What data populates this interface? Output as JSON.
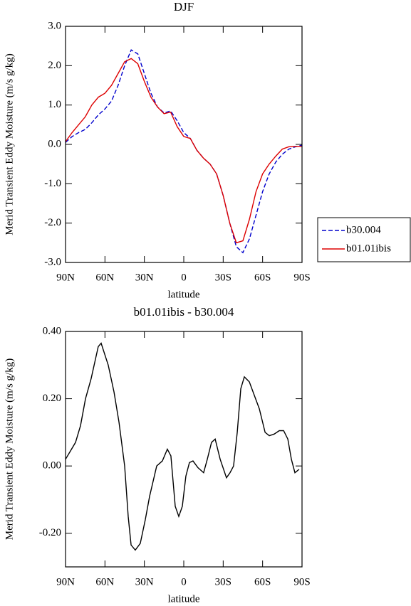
{
  "chart_data": [
    {
      "type": "line",
      "title": "DJF",
      "y_label": "Merid Transient Eddy Moisture (m/s g/kg)",
      "x_label": "latitude",
      "x": [
        90,
        85,
        80,
        75,
        70,
        65,
        60,
        55,
        50,
        45,
        40,
        35,
        30,
        25,
        20,
        15,
        10,
        5,
        0,
        -5,
        -10,
        -15,
        -20,
        -25,
        -30,
        -35,
        -40,
        -45,
        -50,
        -55,
        -60,
        -65,
        -70,
        -75,
        -80,
        -85,
        -90
      ],
      "series": [
        {
          "name": "b30.004",
          "color": "#0000cc",
          "line_style": "dashed",
          "values": [
            0.05,
            0.2,
            0.3,
            0.38,
            0.55,
            0.75,
            0.9,
            1.1,
            1.5,
            2.0,
            2.4,
            2.3,
            1.8,
            1.3,
            0.95,
            0.8,
            0.85,
            0.6,
            0.3,
            0.15,
            -0.15,
            -0.35,
            -0.5,
            -0.75,
            -1.3,
            -2.0,
            -2.6,
            -2.75,
            -2.4,
            -1.8,
            -1.2,
            -0.75,
            -0.45,
            -0.25,
            -0.12,
            -0.06,
            -0.02
          ]
        },
        {
          "name": "b01.01ibis",
          "color": "#dd0000",
          "line_style": "solid",
          "values": [
            0.07,
            0.3,
            0.5,
            0.7,
            1.0,
            1.2,
            1.3,
            1.5,
            1.8,
            2.1,
            2.18,
            2.05,
            1.6,
            1.2,
            0.95,
            0.78,
            0.82,
            0.45,
            0.2,
            0.15,
            -0.15,
            -0.35,
            -0.5,
            -0.75,
            -1.3,
            -2.0,
            -2.5,
            -2.45,
            -1.9,
            -1.2,
            -0.75,
            -0.5,
            -0.3,
            -0.12,
            -0.06,
            -0.05,
            -0.05
          ]
        }
      ],
      "xlim": [
        90,
        -90
      ],
      "xticks": [
        {
          "value": 90,
          "label": "90N"
        },
        {
          "value": 60,
          "label": "60N"
        },
        {
          "value": 30,
          "label": "30N"
        },
        0,
        {
          "value": -30,
          "label": "30S"
        },
        {
          "value": -60,
          "label": "60S"
        },
        {
          "value": -90,
          "label": "90S"
        }
      ],
      "ylim": [
        -3,
        3
      ],
      "yticks": [
        {
          "value": 3,
          "label": "3.0"
        },
        {
          "value": 2,
          "label": "2.0"
        },
        {
          "value": 1,
          "label": "1.0"
        },
        {
          "value": 0,
          "label": "0.0"
        },
        {
          "value": -1,
          "label": "-1.0"
        },
        {
          "value": -2,
          "label": "-2.0"
        },
        {
          "value": -3,
          "label": "-3.0"
        }
      ],
      "legend": "right"
    },
    {
      "type": "line",
      "title": "b01.01ibis - b30.004",
      "y_label": "Merid Transient Eddy Moisture (m/s g/kg)",
      "x_label": "latitude",
      "x": [
        90,
        82.4,
        78.6,
        74.8,
        70.5,
        65.1,
        62.9,
        57.5,
        53.1,
        49.3,
        45,
        42.3,
        40.1,
        36.9,
        33.1,
        29.3,
        26,
        20.6,
        16.3,
        12.5,
        9.8,
        6.5,
        3.8,
        1.1,
        -1.6,
        -4.3,
        -7,
        -10.8,
        -15.1,
        -17.9,
        -21.1,
        -23.9,
        -27.7,
        -32.5,
        -35.2,
        -37.9,
        -40.7,
        -43.4,
        -46.1,
        -49.9,
        -53.7,
        -57.5,
        -61.9,
        -65.1,
        -68.9,
        -72.7,
        -76,
        -79.2,
        -81.9,
        -84.6,
        -87.8
      ],
      "series": [
        {
          "color": "#000000",
          "line_style": "solid",
          "values": [
            0.02,
            0.07,
            0.12,
            0.2,
            0.26,
            0.355,
            0.365,
            0.3,
            0.22,
            0.13,
            0,
            -0.15,
            -0.235,
            -0.25,
            -0.23,
            -0.16,
            -0.09,
            0,
            0.015,
            0.05,
            0.03,
            -0.12,
            -0.15,
            -0.12,
            -0.03,
            0.01,
            0.015,
            -0.005,
            -0.02,
            0.02,
            0.07,
            0.08,
            0.02,
            -0.035,
            -0.02,
            0,
            0.1,
            0.23,
            0.265,
            0.25,
            0.21,
            0.17,
            0.1,
            0.09,
            0.095,
            0.105,
            0.105,
            0.08,
            0.02,
            -0.02,
            -0.01
          ]
        }
      ],
      "xlim": [
        90,
        -90
      ],
      "xticks": [
        {
          "value": 90,
          "label": "90N"
        },
        {
          "value": 60,
          "label": "60N"
        },
        {
          "value": 30,
          "label": "30N"
        },
        0,
        {
          "value": -30,
          "label": "30S"
        },
        {
          "value": -60,
          "label": "60S"
        },
        {
          "value": -90,
          "label": "90S"
        }
      ],
      "ylim": [
        -0.3,
        0.4
      ],
      "yticks": [
        {
          "value": 0.4,
          "label": "0.40"
        },
        {
          "value": 0.2,
          "label": "0.20"
        },
        {
          "value": 0,
          "label": "0.00"
        },
        {
          "value": -0.2,
          "label": "-0.20"
        }
      ]
    }
  ]
}
